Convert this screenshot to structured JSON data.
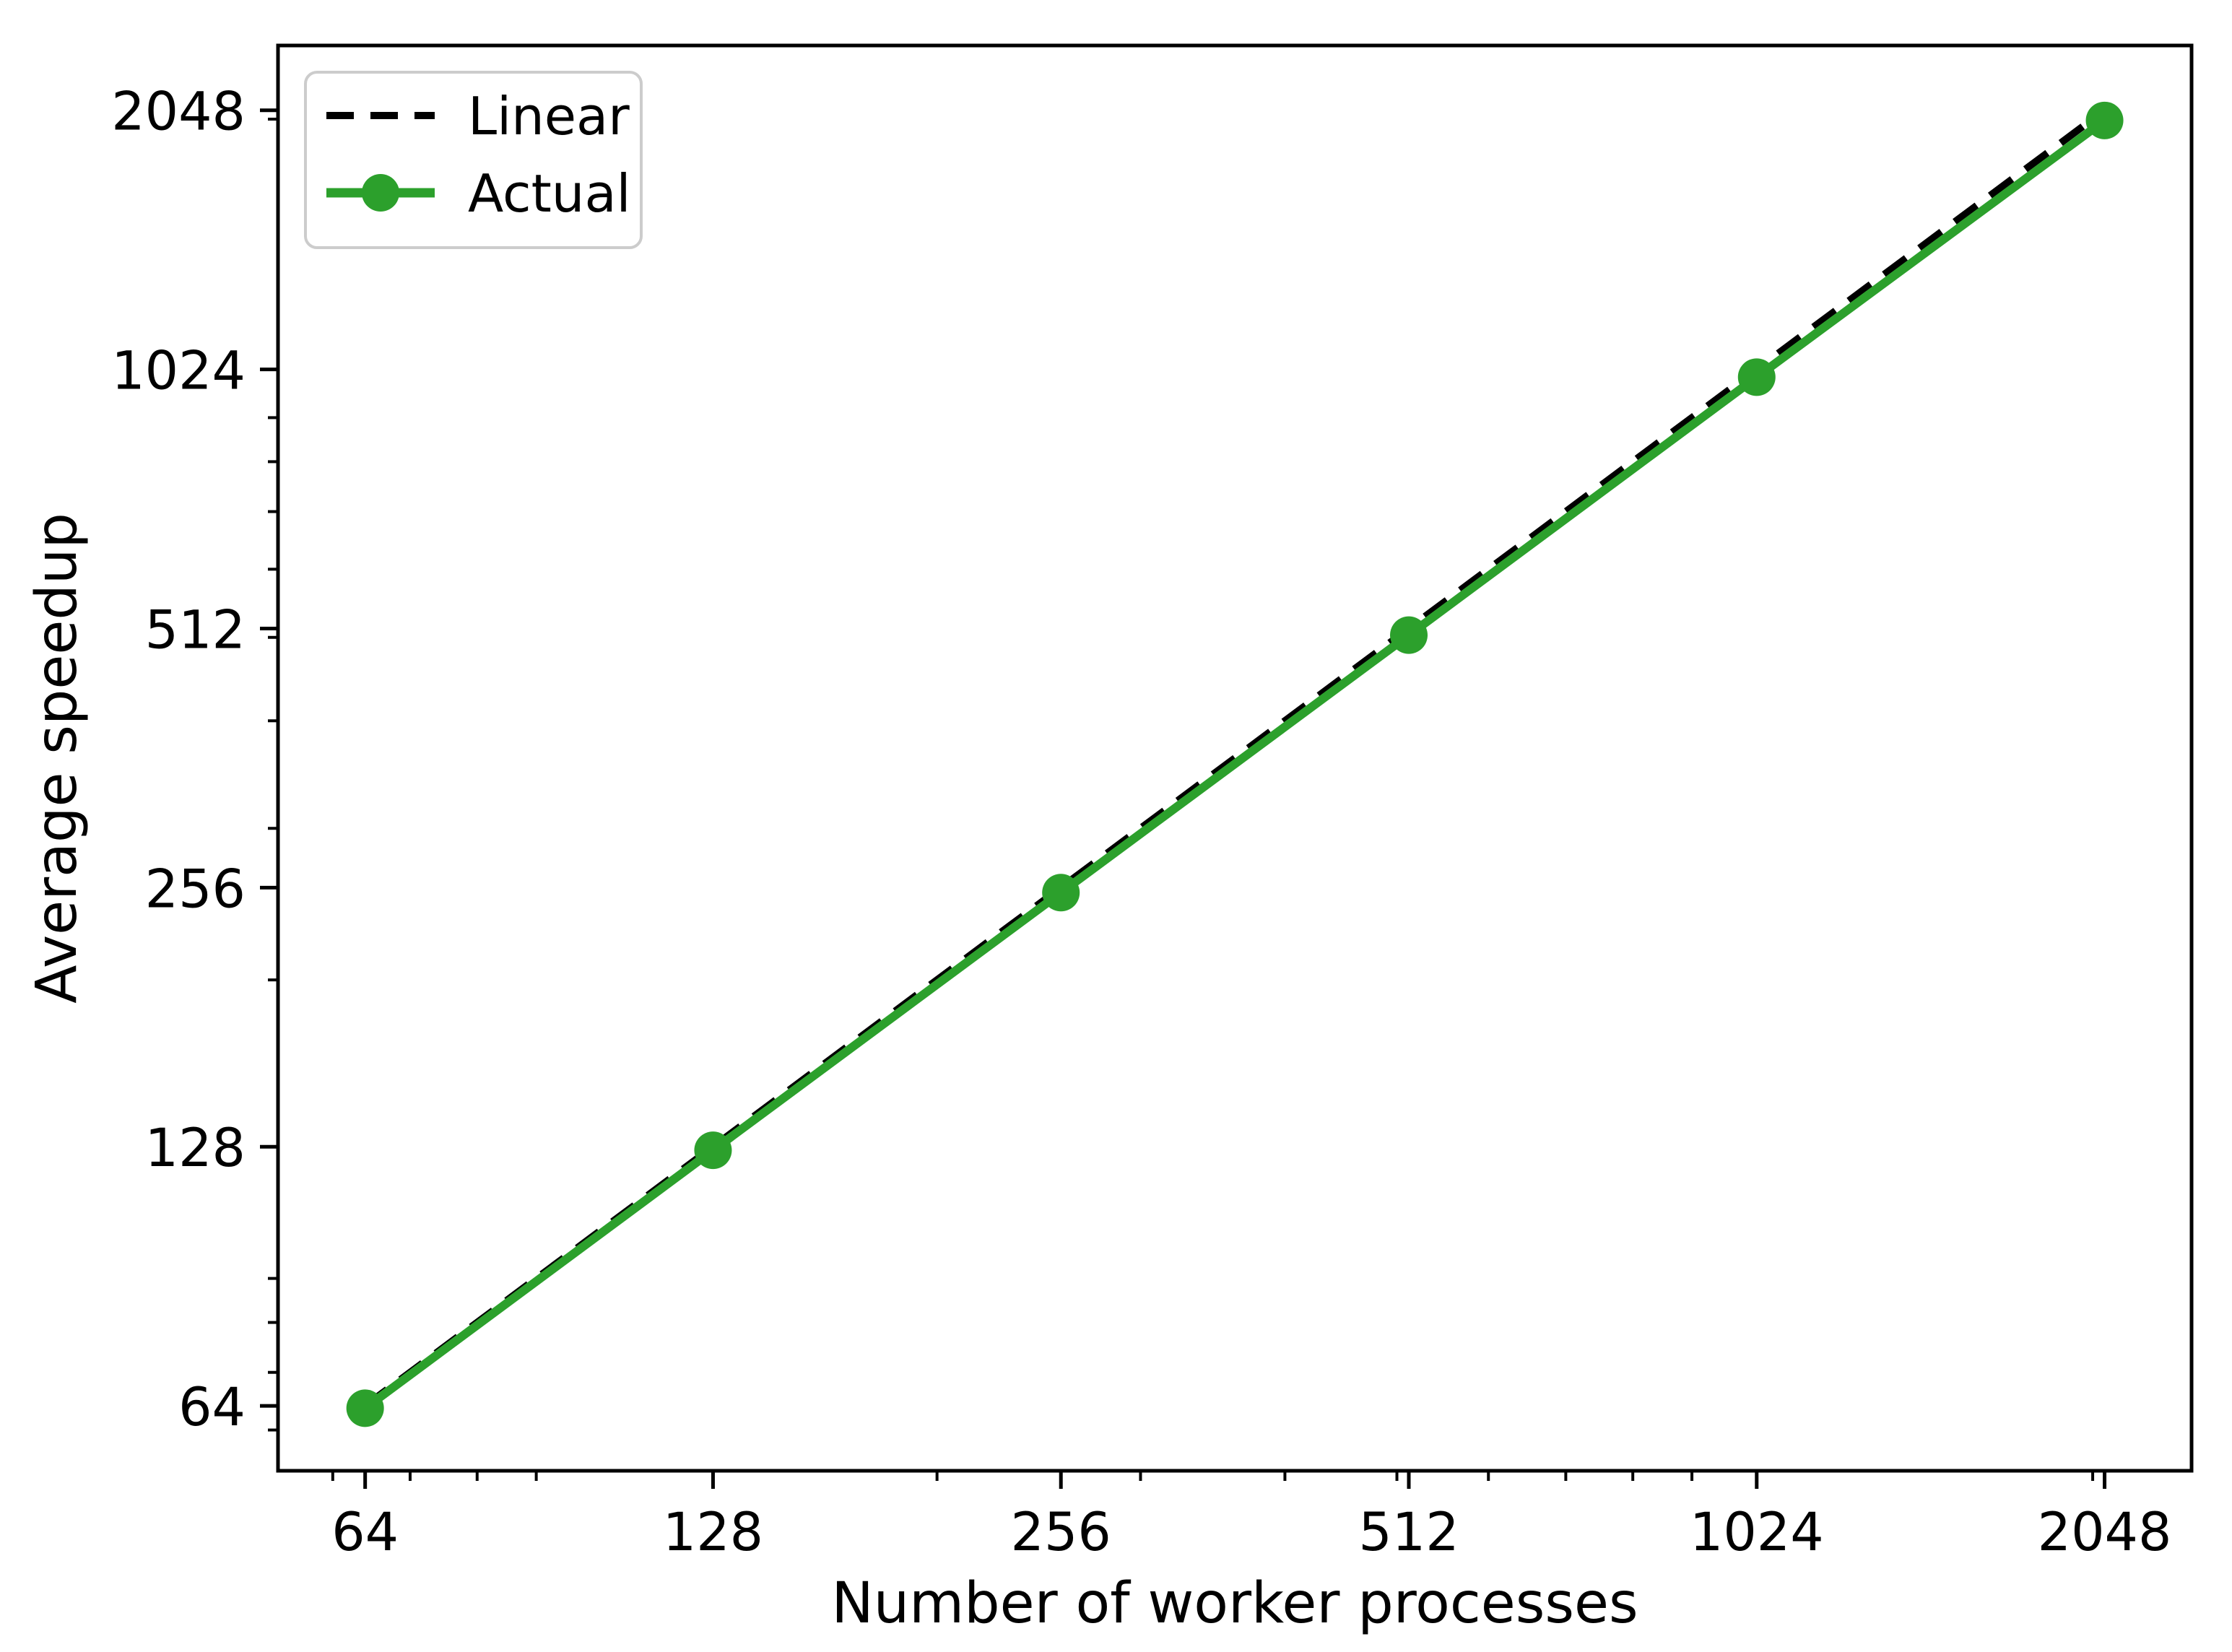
{
  "figure": {
    "background": "#ffffff",
    "frame_color": "#000000"
  },
  "chart_data": {
    "type": "line",
    "title": "",
    "xlabel": "Number of worker processes",
    "ylabel": "Average speedup",
    "x_scale": "log",
    "y_scale": "log",
    "log_base": 2,
    "xlim": [
      53.8,
      2435.5
    ],
    "ylim": [
      53.8,
      2435.5
    ],
    "x_major_ticks": [
      64,
      128,
      256,
      512,
      1024,
      2048
    ],
    "x_tick_labels": [
      "64",
      "128",
      "256",
      "512",
      "1024",
      "2048"
    ],
    "y_major_ticks": [
      64,
      128,
      256,
      512,
      1024,
      2048
    ],
    "y_tick_labels": [
      "64",
      "128",
      "256",
      "512",
      "1024",
      "2048"
    ],
    "x_minor_ticks": [
      60,
      70,
      80,
      90,
      200,
      300,
      400,
      500,
      600,
      700,
      800,
      900,
      2000
    ],
    "y_minor_ticks": [
      60,
      70,
      80,
      90,
      200,
      300,
      400,
      500,
      600,
      700,
      800,
      900,
      2000
    ],
    "grid": false,
    "series": [
      {
        "name": "Linear",
        "color": "#000000",
        "linestyle": "dashed",
        "marker": "none",
        "x": [
          64,
          128,
          256,
          512,
          1024,
          2048
        ],
        "y": [
          64,
          128,
          256,
          512,
          1024,
          2048
        ]
      },
      {
        "name": "Actual",
        "color": "#2ca02c",
        "linestyle": "solid",
        "marker": "circle",
        "x": [
          64,
          128,
          256,
          512,
          1024,
          2048
        ],
        "y": [
          63.6,
          126.8,
          252.6,
          503,
          1003,
          1993
        ]
      }
    ],
    "legend": {
      "position": "upper left",
      "entries": [
        "Linear",
        "Actual"
      ],
      "border_color": "#cccccc",
      "background": "#ffffff"
    }
  }
}
